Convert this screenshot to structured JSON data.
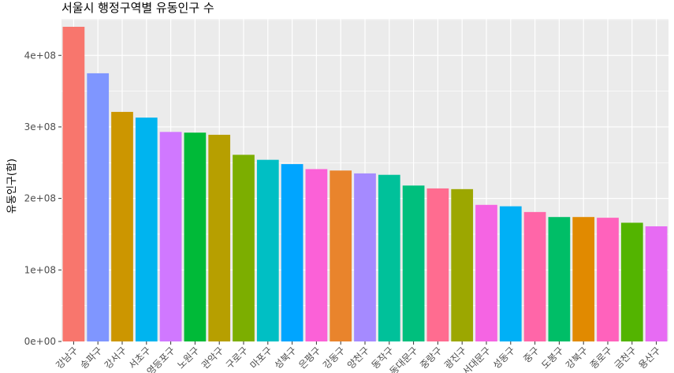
{
  "chart_data": {
    "type": "bar",
    "title": "서울시 행정구역별 유동인구 수",
    "xlabel": "",
    "ylabel": "유동인구(합)",
    "ylim": [
      0,
      450000000
    ],
    "y_ticks": [
      {
        "value": 0,
        "label": "0e+00"
      },
      {
        "value": 100000000,
        "label": "1e+08"
      },
      {
        "value": 200000000,
        "label": "2e+08"
      },
      {
        "value": 300000000,
        "label": "3e+08"
      },
      {
        "value": 400000000,
        "label": "4e+08"
      }
    ],
    "grid": true,
    "legend": "none",
    "categories": [
      "강남구",
      "송파구",
      "강서구",
      "서초구",
      "영등포구",
      "노원구",
      "관악구",
      "구로구",
      "마포구",
      "성북구",
      "은평구",
      "강동구",
      "양천구",
      "동작구",
      "동대문구",
      "중랑구",
      "광진구",
      "서대문구",
      "성동구",
      "중구",
      "도봉구",
      "강북구",
      "종로구",
      "금천구",
      "용산구"
    ],
    "values": [
      440000000,
      375000000,
      321000000,
      313000000,
      293000000,
      292000000,
      289000000,
      261000000,
      254000000,
      248000000,
      241000000,
      239000000,
      235000000,
      233000000,
      218000000,
      214000000,
      213000000,
      191000000,
      189000000,
      181000000,
      174000000,
      174000000,
      173000000,
      166000000,
      161000000
    ],
    "colors": [
      "#F8766D",
      "#7F96FF",
      "#CC9600",
      "#00B4EF",
      "#D078FF",
      "#00BA38",
      "#B79F00",
      "#7CAE00",
      "#00BFC4",
      "#00A5FF",
      "#FB61D7",
      "#E9842C",
      "#A58AFF",
      "#00C19A",
      "#00BF7D",
      "#FF6C90",
      "#9CA700",
      "#F564E3",
      "#00B0F6",
      "#FF66A8",
      "#00BE67",
      "#E18A00",
      "#FF62BC",
      "#53B400",
      "#E76BF3"
    ],
    "panel_bg": "#EBEBEB",
    "grid_color": "#FFFFFF"
  }
}
